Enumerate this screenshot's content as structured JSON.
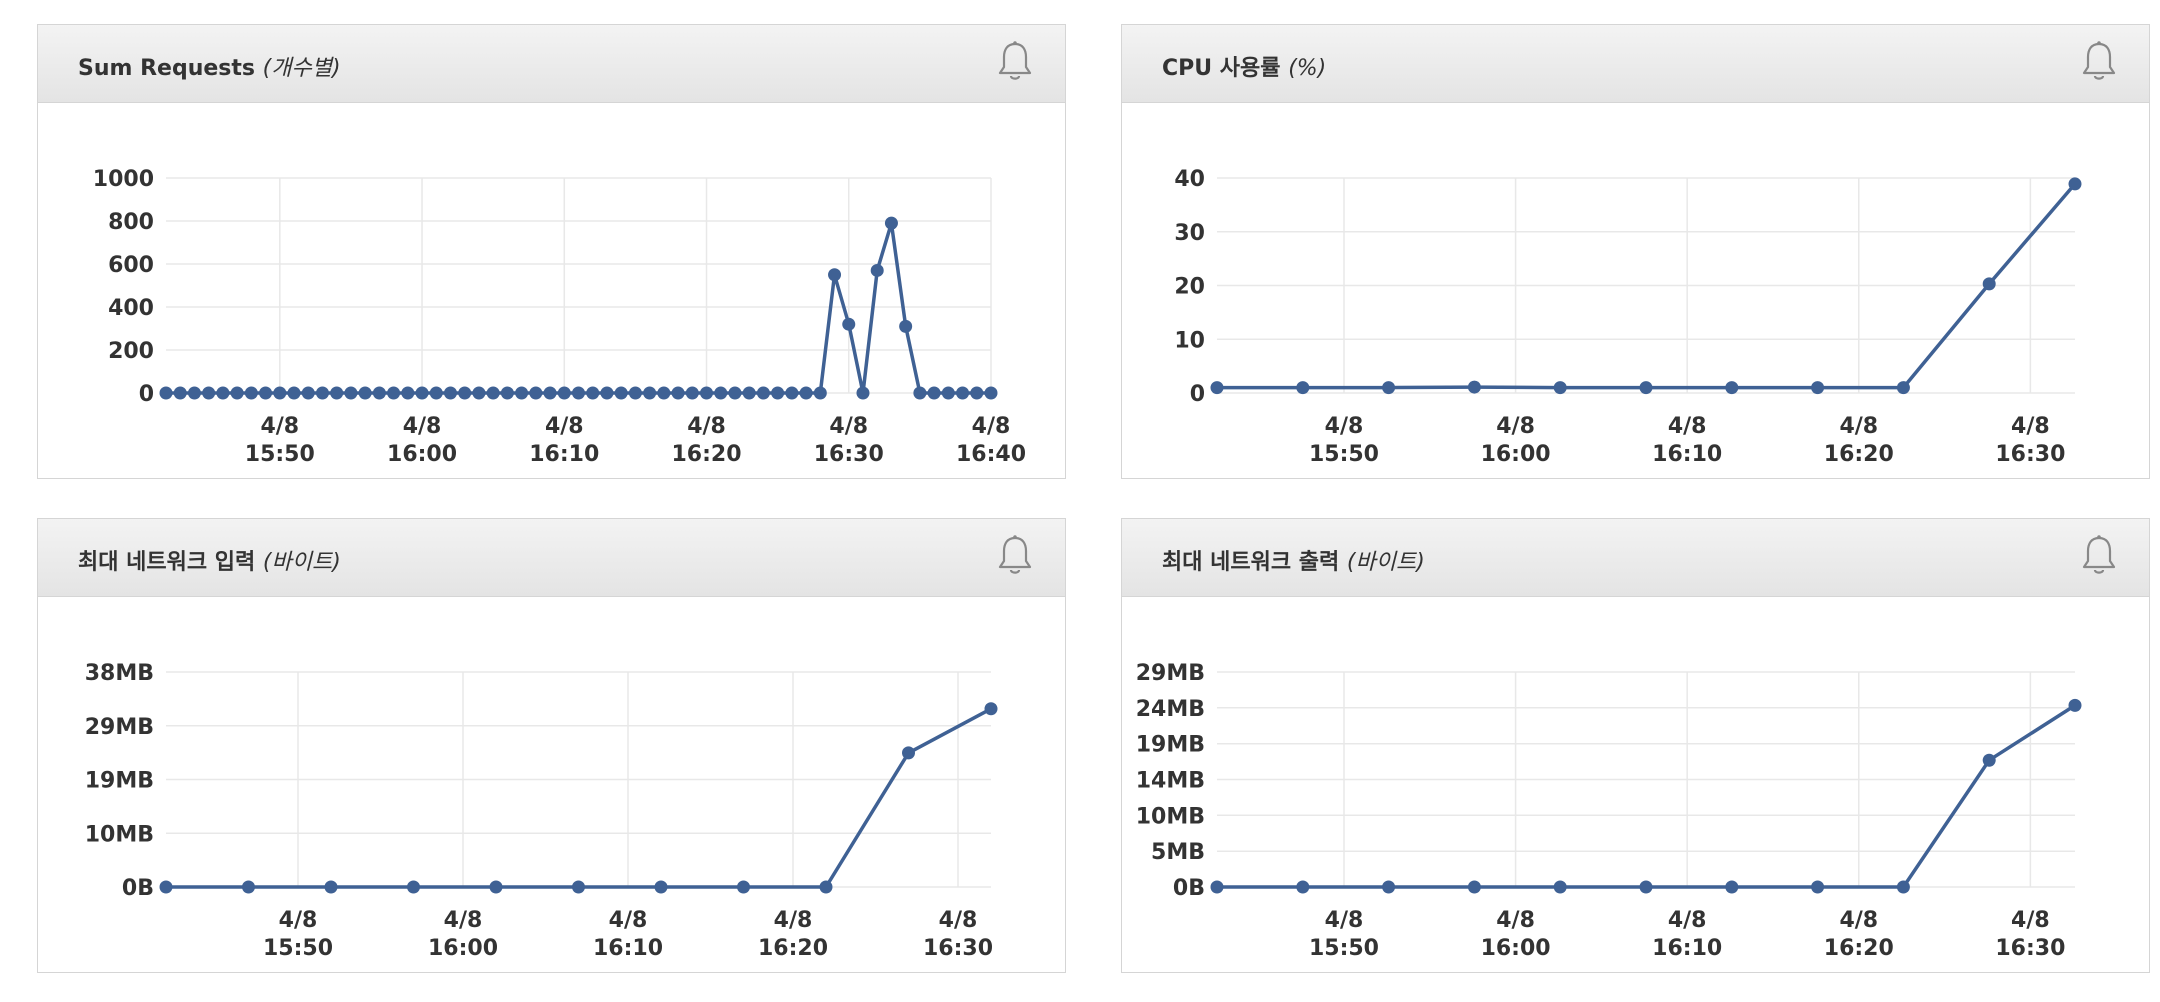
{
  "colors": {
    "line": "#3f6194",
    "grid": "#e8e8e8",
    "header_bg": "#ebebeb",
    "border": "#d5d5d5",
    "text": "#333333"
  },
  "panels": [
    {
      "title": "Sum Requests",
      "unit": "(개수별)",
      "icon": "bell-icon"
    },
    {
      "title": "CPU 사용률",
      "unit": "(%)",
      "icon": "bell-icon"
    },
    {
      "title": "최대 네트워크 입력",
      "unit": "(바이트)",
      "icon": "bell-icon"
    },
    {
      "title": "최대 네트워크 출력",
      "unit": "(바이트)",
      "icon": "bell-icon"
    }
  ],
  "chart_data": [
    {
      "type": "line",
      "title": "Sum Requests (개수별)",
      "x_unit": "minutes",
      "x": [
        0,
        1,
        2,
        3,
        4,
        5,
        6,
        7,
        8,
        9,
        10,
        11,
        12,
        13,
        14,
        15,
        16,
        17,
        18,
        19,
        20,
        21,
        22,
        23,
        24,
        25,
        26,
        27,
        28,
        29,
        30,
        31,
        32,
        33,
        34,
        35,
        36,
        37,
        38,
        39,
        40,
        41,
        42,
        43,
        44,
        45,
        46,
        47,
        48,
        49,
        50,
        51,
        52,
        53,
        54,
        55,
        56,
        57,
        58
      ],
      "y": [
        0,
        0,
        0,
        0,
        0,
        0,
        0,
        0,
        0,
        0,
        0,
        0,
        0,
        0,
        0,
        0,
        0,
        0,
        0,
        0,
        0,
        0,
        0,
        0,
        0,
        0,
        0,
        0,
        0,
        0,
        0,
        0,
        0,
        0,
        0,
        0,
        0,
        0,
        0,
        0,
        0,
        0,
        0,
        0,
        0,
        0,
        0,
        550,
        320,
        0,
        570,
        790,
        310,
        0,
        0,
        0,
        0,
        0,
        0
      ],
      "ylim": [
        0,
        1000
      ],
      "yticks": [
        {
          "v": 0,
          "label": "0"
        },
        {
          "v": 200,
          "label": "200"
        },
        {
          "v": 400,
          "label": "400"
        },
        {
          "v": 600,
          "label": "600"
        },
        {
          "v": 800,
          "label": "800"
        },
        {
          "v": 1000,
          "label": "1000"
        }
      ],
      "xlim": [
        0,
        58
      ],
      "xticks": [
        {
          "v": 8,
          "line1": "4/8",
          "line2": "15:50"
        },
        {
          "v": 18,
          "line1": "4/8",
          "line2": "16:00"
        },
        {
          "v": 28,
          "line1": "4/8",
          "line2": "16:10"
        },
        {
          "v": 38,
          "line1": "4/8",
          "line2": "16:20"
        },
        {
          "v": 48,
          "line1": "4/8",
          "line2": "16:30"
        },
        {
          "v": 58,
          "line1": "4/8",
          "line2": "16:40"
        }
      ],
      "grid": true
    },
    {
      "type": "line",
      "title": "CPU 사용률 (%)",
      "x_unit": "minutes",
      "x": [
        0,
        5,
        10,
        15,
        20,
        25,
        30,
        35,
        40,
        45,
        50
      ],
      "y": [
        1,
        1,
        1,
        1.1,
        1,
        1,
        1,
        1,
        1,
        20.3,
        38.9
      ],
      "ylim": [
        0,
        40
      ],
      "yticks": [
        {
          "v": 0,
          "label": "0"
        },
        {
          "v": 10,
          "label": "10"
        },
        {
          "v": 20,
          "label": "20"
        },
        {
          "v": 30,
          "label": "30"
        },
        {
          "v": 40,
          "label": "40"
        }
      ],
      "xlim": [
        0,
        50
      ],
      "xticks": [
        {
          "v": 7.4,
          "line1": "4/8",
          "line2": "15:50"
        },
        {
          "v": 17.4,
          "line1": "4/8",
          "line2": "16:00"
        },
        {
          "v": 27.4,
          "line1": "4/8",
          "line2": "16:10"
        },
        {
          "v": 37.4,
          "line1": "4/8",
          "line2": "16:20"
        },
        {
          "v": 47.4,
          "line1": "4/8",
          "line2": "16:30"
        }
      ],
      "grid": true
    },
    {
      "type": "line",
      "title": "최대 네트워크 입력 (바이트)",
      "x_unit": "minutes",
      "x": [
        0,
        5,
        10,
        15,
        20,
        25,
        30,
        35,
        40,
        45,
        50
      ],
      "y": [
        0,
        0,
        0,
        0,
        0,
        0,
        0,
        0,
        0,
        23.7,
        31.5
      ],
      "ylim": [
        0,
        38
      ],
      "yticks": [
        {
          "v": 0,
          "label": "0B"
        },
        {
          "v": 9.5,
          "label": "10MB"
        },
        {
          "v": 19,
          "label": "19MB"
        },
        {
          "v": 28.5,
          "label": "29MB"
        },
        {
          "v": 38,
          "label": "38MB"
        }
      ],
      "xlim": [
        0,
        50
      ],
      "xticks": [
        {
          "v": 8,
          "line1": "4/8",
          "line2": "15:50"
        },
        {
          "v": 18,
          "line1": "4/8",
          "line2": "16:00"
        },
        {
          "v": 28,
          "line1": "4/8",
          "line2": "16:10"
        },
        {
          "v": 38,
          "line1": "4/8",
          "line2": "16:20"
        },
        {
          "v": 48,
          "line1": "4/8",
          "line2": "16:30"
        }
      ],
      "grid": true
    },
    {
      "type": "line",
      "title": "최대 네트워크 출력 (바이트)",
      "x_unit": "minutes",
      "x": [
        0,
        5,
        10,
        15,
        20,
        25,
        30,
        35,
        40,
        45,
        50
      ],
      "y": [
        0,
        0,
        0,
        0,
        0,
        0,
        0,
        0,
        0,
        17.1,
        24.5
      ],
      "ylim": [
        0,
        29
      ],
      "yticks": [
        {
          "v": 0,
          "label": "0B"
        },
        {
          "v": 4.83,
          "label": "5MB"
        },
        {
          "v": 9.67,
          "label": "10MB"
        },
        {
          "v": 14.5,
          "label": "14MB"
        },
        {
          "v": 19.33,
          "label": "19MB"
        },
        {
          "v": 24.17,
          "label": "24MB"
        },
        {
          "v": 29,
          "label": "29MB"
        }
      ],
      "xlim": [
        0,
        50
      ],
      "xticks": [
        {
          "v": 7.4,
          "line1": "4/8",
          "line2": "15:50"
        },
        {
          "v": 17.4,
          "line1": "4/8",
          "line2": "16:00"
        },
        {
          "v": 27.4,
          "line1": "4/8",
          "line2": "16:10"
        },
        {
          "v": 37.4,
          "line1": "4/8",
          "line2": "16:20"
        },
        {
          "v": 47.4,
          "line1": "4/8",
          "line2": "16:30"
        }
      ],
      "grid": true
    }
  ]
}
